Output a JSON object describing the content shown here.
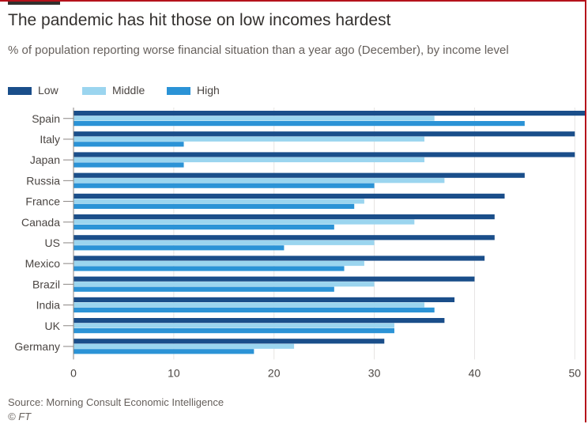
{
  "title": "The pandemic has hit those on low incomes hardest",
  "subtitle": "% of population reporting worse financial situation than a year ago (December), by income level",
  "source": "Source: Morning Consult Economic Intelligence",
  "credit": "© FT",
  "colors": {
    "low": "#1a4e8a",
    "middle": "#9bd5ef",
    "high": "#2b93d6",
    "grid": "#e6e4e2",
    "axis_text": "#4a4542"
  },
  "chart_data": {
    "type": "bar",
    "orientation": "horizontal",
    "categories": [
      "Spain",
      "Italy",
      "Japan",
      "Russia",
      "France",
      "Canada",
      "US",
      "Mexico",
      "Brazil",
      "India",
      "UK",
      "Germany"
    ],
    "series": [
      {
        "name": "Low",
        "values": [
          51,
          50,
          50,
          45,
          43,
          42,
          42,
          41,
          40,
          38,
          37,
          31
        ]
      },
      {
        "name": "Middle",
        "values": [
          36,
          35,
          35,
          37,
          29,
          34,
          30,
          29,
          30,
          35,
          32,
          22
        ]
      },
      {
        "name": "High",
        "values": [
          45,
          11,
          11,
          30,
          28,
          26,
          21,
          27,
          26,
          36,
          32,
          18
        ]
      }
    ],
    "xlim": [
      0,
      51
    ],
    "xticks": [
      0,
      10,
      20,
      30,
      40,
      50
    ],
    "grid": true,
    "legend_position": "top-left"
  }
}
